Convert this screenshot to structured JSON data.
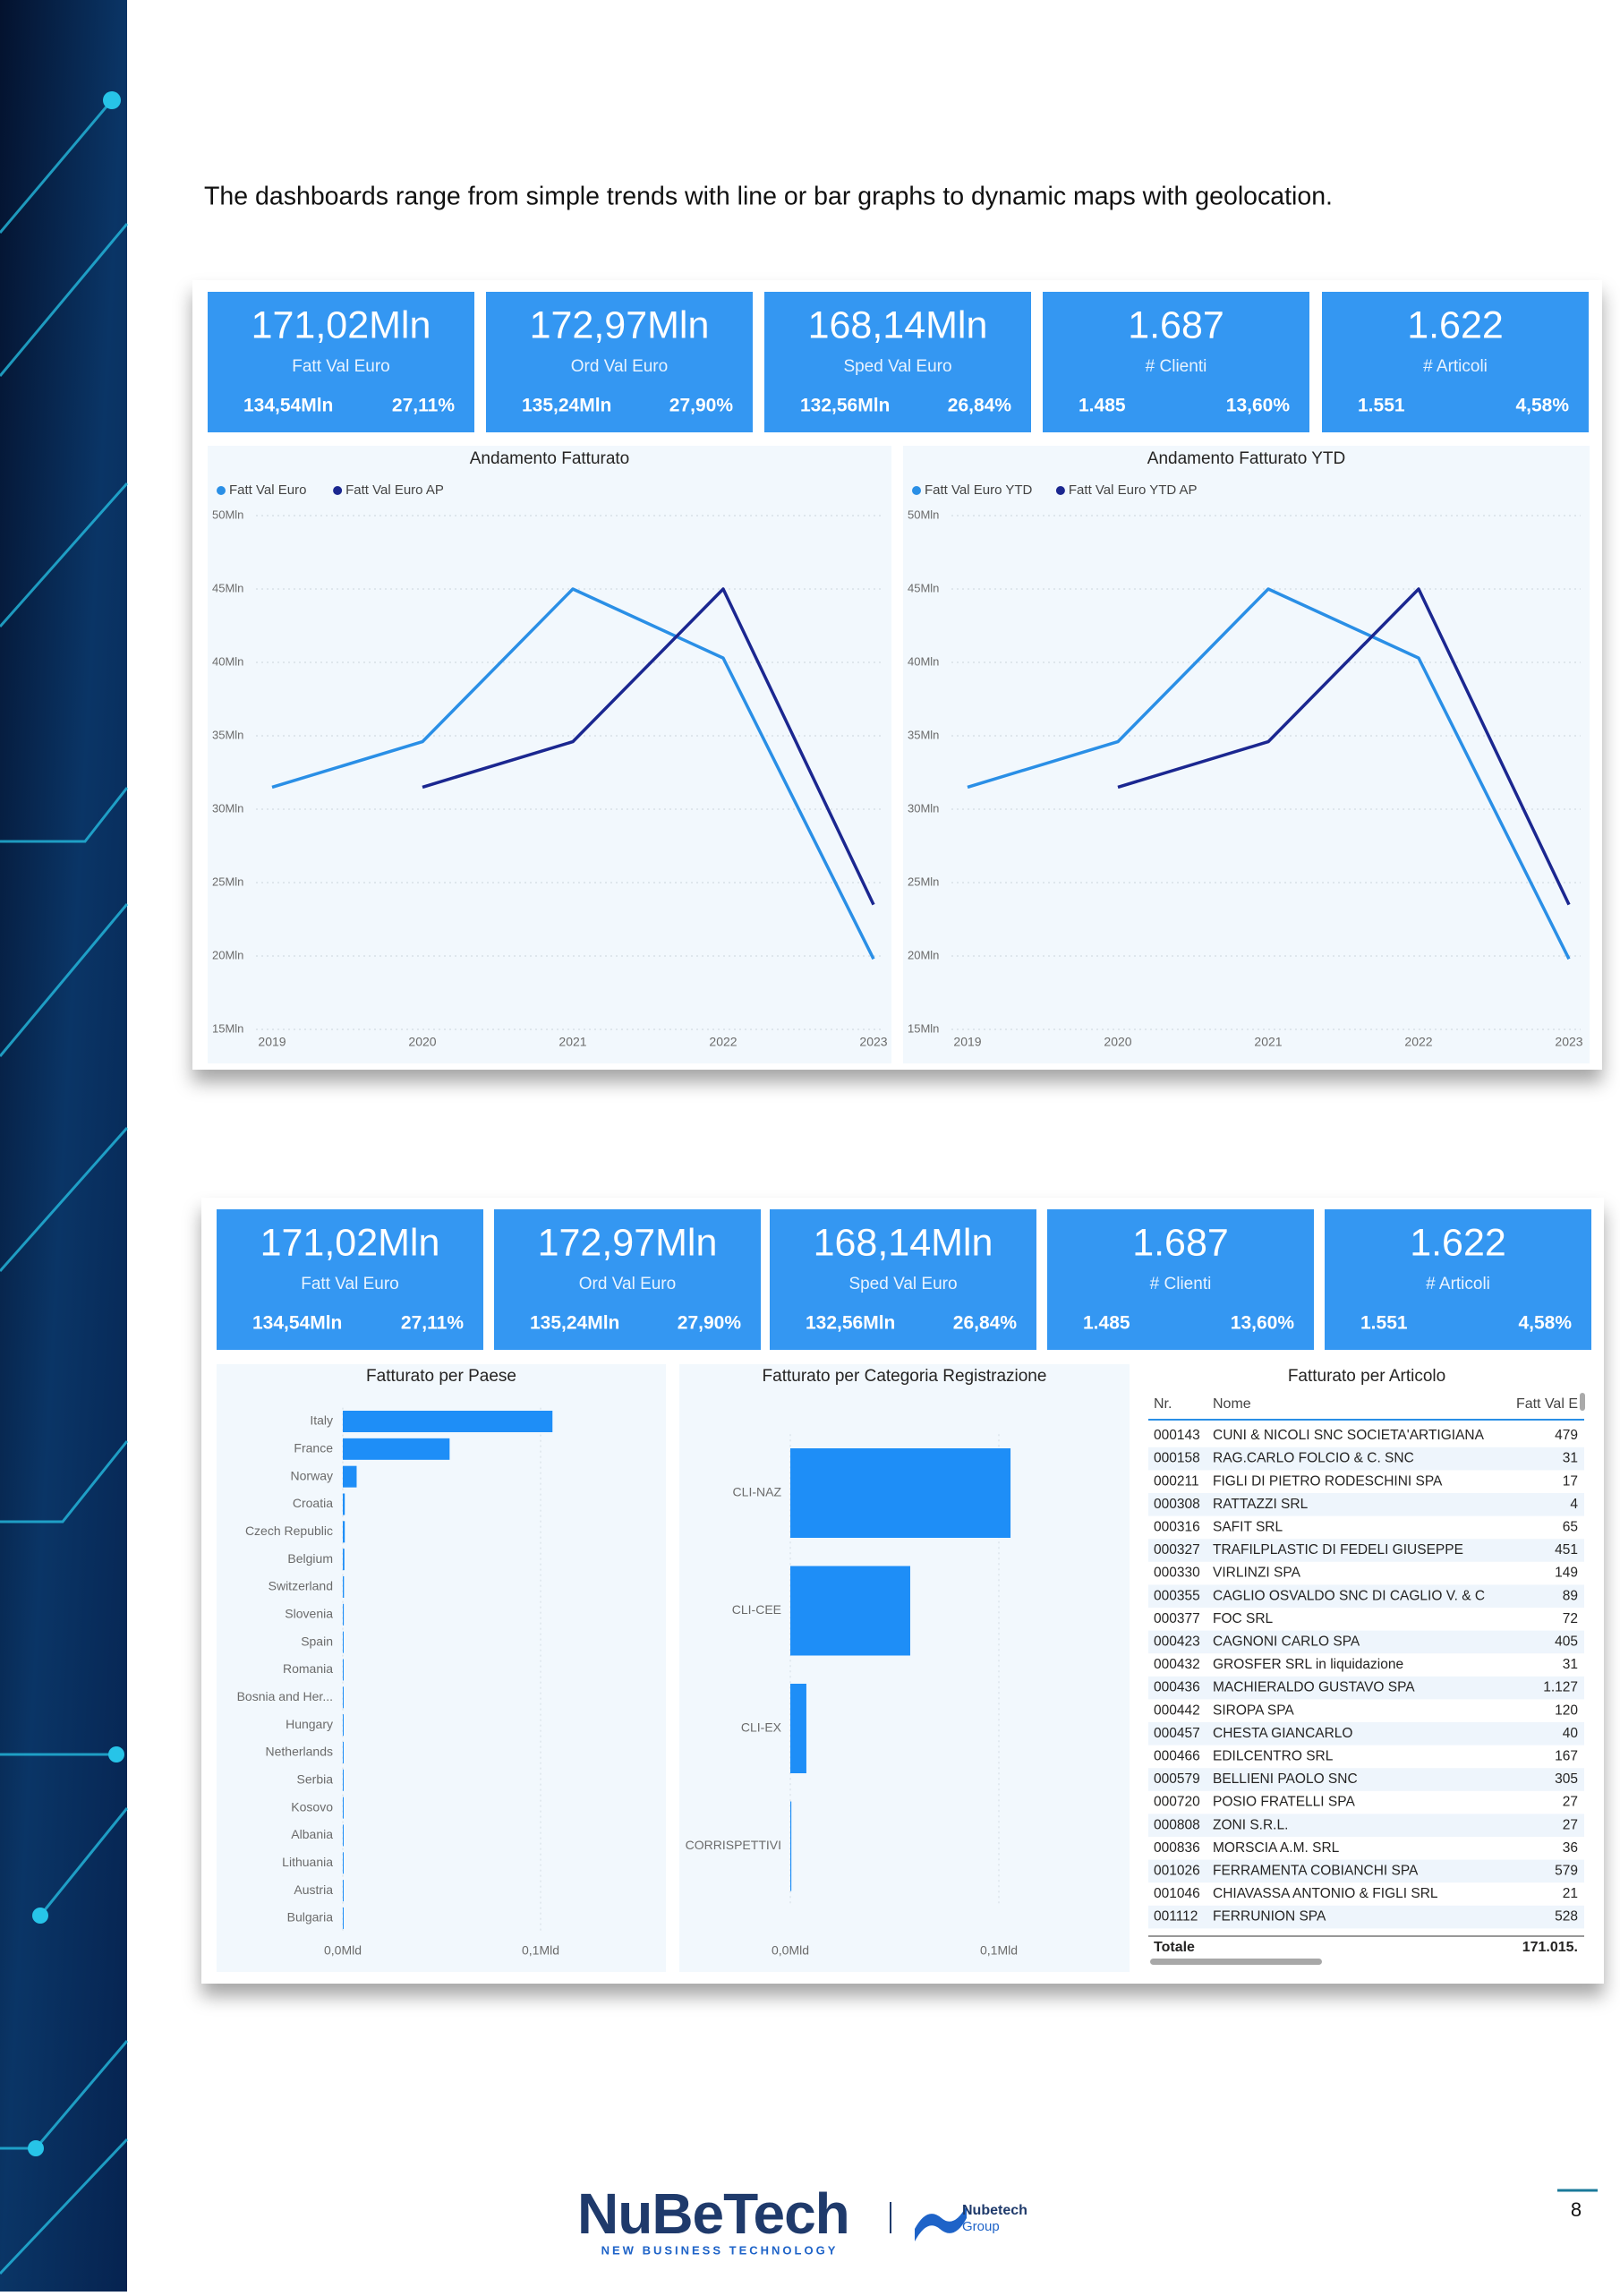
{
  "intro": "The dashboards range from simple trends with line or bar graphs to dynamic maps with geolocation.",
  "kpi_rows": [
    [
      {
        "value": "171,02Mln",
        "label": "Fatt Val Euro",
        "prev": "134,54Mln",
        "delta": "27,11%"
      },
      {
        "value": "172,97Mln",
        "label": "Ord Val Euro",
        "prev": "135,24Mln",
        "delta": "27,90%"
      },
      {
        "value": "168,14Mln",
        "label": "Sped Val Euro",
        "prev": "132,56Mln",
        "delta": "26,84%"
      },
      {
        "value": "1.687",
        "label": "# Clienti",
        "prev": "1.485",
        "delta": "13,60%"
      },
      {
        "value": "1.622",
        "label": "# Articoli",
        "prev": "1.551",
        "delta": "4,58%"
      }
    ],
    [
      {
        "value": "171,02Mln",
        "label": "Fatt Val Euro",
        "prev": "134,54Mln",
        "delta": "27,11%"
      },
      {
        "value": "172,97Mln",
        "label": "Ord Val Euro",
        "prev": "135,24Mln",
        "delta": "27,90%"
      },
      {
        "value": "168,14Mln",
        "label": "Sped Val Euro",
        "prev": "132,56Mln",
        "delta": "26,84%"
      },
      {
        "value": "1.687",
        "label": "# Clienti",
        "prev": "1.485",
        "delta": "13,60%"
      },
      {
        "value": "1.622",
        "label": "# Articoli",
        "prev": "1.551",
        "delta": "4,58%"
      }
    ]
  ],
  "chart_data": [
    {
      "type": "line",
      "title": "Andamento Fatturato",
      "categories": [
        "2019",
        "2020",
        "2021",
        "2022",
        "2023"
      ],
      "series": [
        {
          "name": "Fatt Val Euro",
          "color": "#2a8fe6",
          "values": [
            31.5,
            34.6,
            45,
            40.3,
            19.8
          ]
        },
        {
          "name": "Fatt Val Euro AP",
          "color": "#1b2790",
          "values": [
            null,
            31.5,
            34.6,
            45,
            23.5
          ]
        }
      ],
      "ylim": [
        15,
        50
      ],
      "yticks": [
        {
          "value": 15,
          "label": "15Mln"
        },
        {
          "value": 20,
          "label": "20Mln"
        },
        {
          "value": 25,
          "label": "25Mln"
        },
        {
          "value": 30,
          "label": "30Mln"
        },
        {
          "value": 35,
          "label": "35Mln"
        },
        {
          "value": 40,
          "label": "40Mln"
        },
        {
          "value": 45,
          "label": "45Mln"
        },
        {
          "value": 50,
          "label": "50Mln"
        }
      ],
      "grid": true
    },
    {
      "type": "line",
      "title": "Andamento Fatturato YTD",
      "categories": [
        "2019",
        "2020",
        "2021",
        "2022",
        "2023"
      ],
      "series": [
        {
          "name": "Fatt Val Euro YTD",
          "color": "#2a8fe6",
          "values": [
            31.5,
            34.6,
            45,
            40.3,
            19.8
          ]
        },
        {
          "name": "Fatt Val Euro YTD AP",
          "color": "#1b2790",
          "values": [
            null,
            31.5,
            34.6,
            45,
            23.5
          ]
        }
      ],
      "ylim": [
        15,
        50
      ],
      "yticks": [
        {
          "value": 15,
          "label": "15Mln"
        },
        {
          "value": 20,
          "label": "20Mln"
        },
        {
          "value": 25,
          "label": "25Mln"
        },
        {
          "value": 30,
          "label": "30Mln"
        },
        {
          "value": 35,
          "label": "35Mln"
        },
        {
          "value": 40,
          "label": "40Mln"
        },
        {
          "value": 45,
          "label": "45Mln"
        },
        {
          "value": 50,
          "label": "50Mln"
        }
      ],
      "grid": true
    },
    {
      "type": "hbar",
      "title": "Fatturato per Paese",
      "categories": [
        "Italy",
        "France",
        "Norway",
        "Croatia",
        "Czech Republic",
        "Belgium",
        "Switzerland",
        "Slovenia",
        "Spain",
        "Romania",
        "Bosnia and Her...",
        "Hungary",
        "Netherlands",
        "Serbia",
        "Kosovo",
        "Albania",
        "Lithuania",
        "Austria",
        "Bulgaria"
      ],
      "values": [
        0.106,
        0.054,
        0.007,
        0.001,
        0.001,
        0.0008,
        0.0006,
        0.0005,
        0.0004,
        0.0003,
        0.0003,
        0.0002,
        0.0002,
        0.0002,
        0.0001,
        0.0001,
        0.0001,
        0.0001,
        0.0001
      ],
      "color": "#1e8ef7",
      "xlim": [
        0,
        0.15
      ],
      "xticks": [
        {
          "value": 0,
          "label": "0,0Mld"
        },
        {
          "value": 0.1,
          "label": "0,1Mld"
        }
      ],
      "grid": true
    },
    {
      "type": "hbar",
      "title": "Fatturato per Categoria Registrazione",
      "categories": [
        "CLI-NAZ",
        "CLI-CEE",
        "CLI-EX",
        "CORRISPETTIVI"
      ],
      "values": [
        0.1056,
        0.0575,
        0.0077,
        0.0005
      ],
      "color": "#1e8ef7",
      "xlim": [
        0,
        0.15
      ],
      "xticks": [
        {
          "value": 0,
          "label": "0,0Mld"
        },
        {
          "value": 0.1,
          "label": "0,1Mld"
        }
      ],
      "grid": true
    }
  ],
  "table": {
    "title": "Fatturato per Articolo",
    "columns": [
      "Nr.",
      "Nome",
      "Fatt Val E"
    ],
    "rows": [
      [
        "000143",
        "CUNI & NICOLI SNC SOCIETA'ARTIGIANA",
        "479"
      ],
      [
        "000158",
        "RAG.CARLO FOLCIO & C. SNC",
        "31"
      ],
      [
        "000211",
        "FIGLI DI PIETRO RODESCHINI SPA",
        "17"
      ],
      [
        "000308",
        "RATTAZZI SRL",
        "4"
      ],
      [
        "000316",
        "SAFIT SRL",
        "65"
      ],
      [
        "000327",
        "TRAFILPLASTIC DI FEDELI GIUSEPPE",
        "451"
      ],
      [
        "000330",
        "VIRLINZI SPA",
        "149"
      ],
      [
        "000355",
        "CAGLIO OSVALDO SNC DI CAGLIO V. & C",
        "89"
      ],
      [
        "000377",
        "FOC SRL",
        "72"
      ],
      [
        "000423",
        "CAGNONI CARLO SPA",
        "405"
      ],
      [
        "000432",
        "GROSFER SRL in liquidazione",
        "31"
      ],
      [
        "000436",
        "MACHIERALDO GUSTAVO SPA",
        "1.127"
      ],
      [
        "000442",
        "SIROPA SPA",
        "120"
      ],
      [
        "000457",
        "CHESTA GIANCARLO",
        "40"
      ],
      [
        "000466",
        "EDILCENTRO SRL",
        "167"
      ],
      [
        "000579",
        "BELLIENI PAOLO SNC",
        "305"
      ],
      [
        "000720",
        "POSIO FRATELLI SPA",
        "27"
      ],
      [
        "000808",
        "ZONI S.R.L.",
        "27"
      ],
      [
        "000836",
        "MORSCIA A.M. SRL",
        "36"
      ],
      [
        "001026",
        "FERRAMENTA COBIANCHI SPA",
        "579"
      ],
      [
        "001046",
        "CHIAVASSA ANTONIO & FIGLI SRL",
        "21"
      ],
      [
        "001112",
        "FERRUNION SPA",
        "528"
      ]
    ],
    "total_label": "Totale",
    "total_value": "171.015."
  },
  "footer": {
    "logo": "NuBeTech",
    "tagline": "NEW BUSINESS TECHNOLOGY",
    "group_name": "Nubetech",
    "group_sub": "Group",
    "page_number": "8"
  }
}
